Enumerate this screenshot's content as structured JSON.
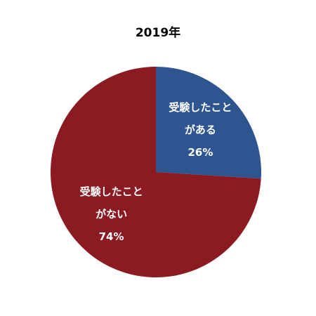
{
  "chart_data": {
    "type": "pie",
    "title": "2019年",
    "categories": [
      "受験したことがある",
      "受験したことがない"
    ],
    "values": [
      26,
      74
    ],
    "value_labels": [
      "26%",
      "74%"
    ],
    "colors": [
      "#2e5590",
      "#8b1a22"
    ]
  }
}
